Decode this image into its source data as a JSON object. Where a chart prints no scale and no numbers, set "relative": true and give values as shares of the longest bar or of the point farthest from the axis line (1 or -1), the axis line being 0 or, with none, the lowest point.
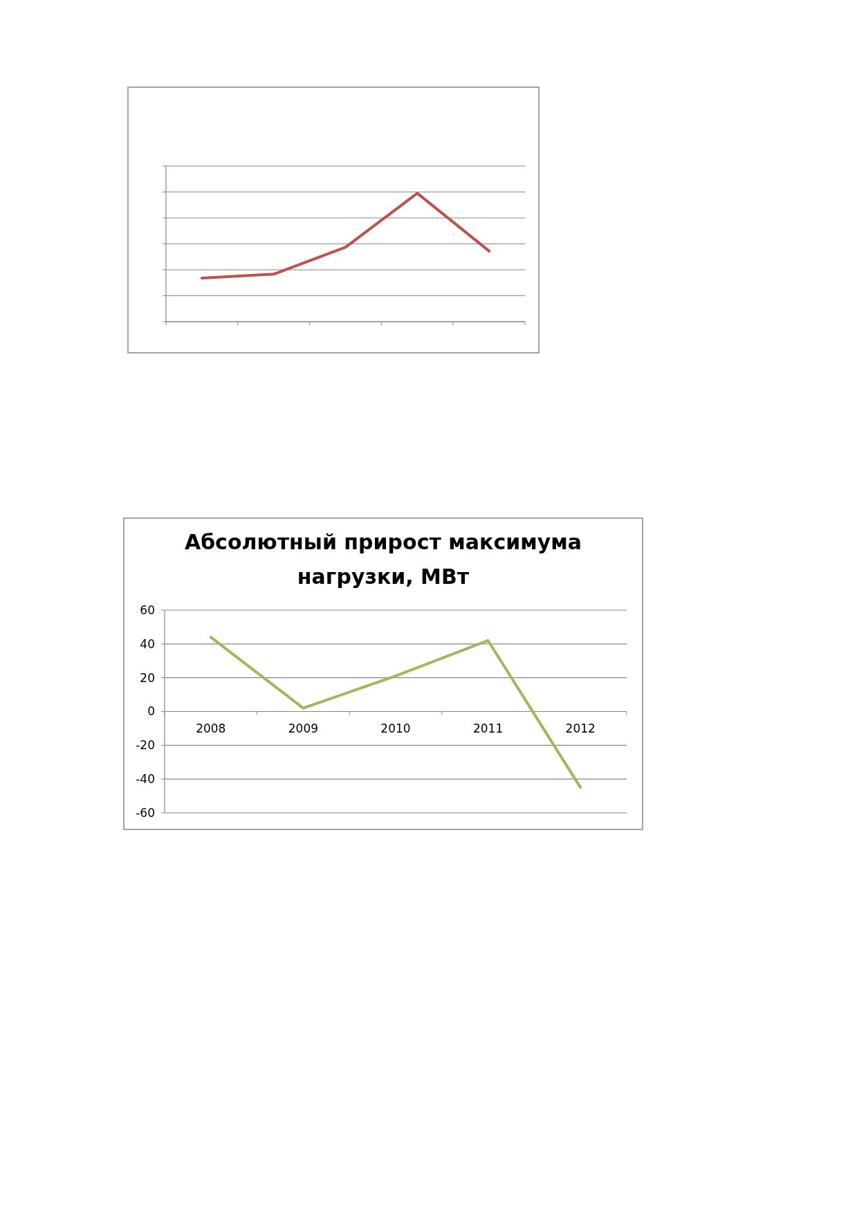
{
  "chart_data": [
    {
      "type": "line",
      "relative": true,
      "categories": [
        null,
        null,
        null,
        null,
        null
      ],
      "grid": true,
      "series": [
        {
          "color": "#c0504d",
          "values": [
            0.34,
            0.37,
            0.58,
            1,
            0.55
          ]
        }
      ]
    },
    {
      "type": "line",
      "title": "Абсолютный прирост максимума нагрузки, МВт",
      "categories": [
        "2008",
        "2009",
        "2010",
        "2011",
        "2012"
      ],
      "ylim": [
        -60,
        60
      ],
      "yticks": [
        -60,
        -40,
        -20,
        0,
        20,
        40,
        60
      ],
      "grid": "y",
      "series": [
        {
          "color": "#9bbb59",
          "values": [
            44,
            2,
            21,
            42,
            -45
          ]
        }
      ]
    }
  ]
}
